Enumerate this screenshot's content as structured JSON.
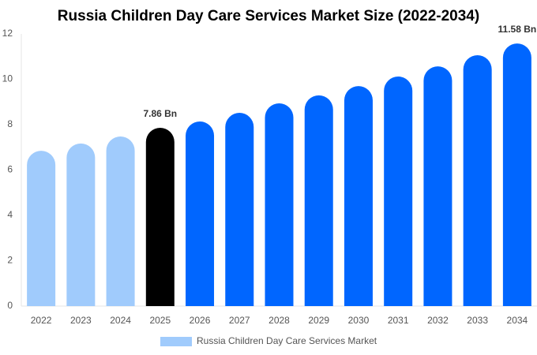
{
  "chart_data": {
    "type": "bar",
    "title": "Russia Children Day Care Services Market Size (2022-2034)",
    "categories": [
      "2022",
      "2023",
      "2024",
      "2025",
      "2026",
      "2027",
      "2028",
      "2029",
      "2030",
      "2031",
      "2032",
      "2033",
      "2034"
    ],
    "series": [
      {
        "name": "Russia Children Day Care Services Market",
        "color": "#a0cbfc",
        "values": [
          6.85,
          7.17,
          7.48,
          7.86,
          8.14,
          8.52,
          8.94,
          9.29,
          9.7,
          10.12,
          10.57,
          11.06,
          11.58
        ],
        "colors": [
          "#a0cbfc",
          "#a0cbfc",
          "#a0cbfc",
          "#000000",
          "#0066ff",
          "#0066ff",
          "#0066ff",
          "#0066ff",
          "#0066ff",
          "#0066ff",
          "#0066ff",
          "#0066ff",
          "#0066ff"
        ],
        "value_labels": [
          null,
          null,
          null,
          "7.86 Bn",
          null,
          null,
          null,
          null,
          null,
          null,
          null,
          null,
          "11.58 Bn"
        ]
      }
    ],
    "ylim": [
      0,
      12
    ],
    "yticks": [
      0,
      2,
      4,
      6,
      8,
      10,
      12
    ],
    "grid": false,
    "legend": "bottom"
  }
}
